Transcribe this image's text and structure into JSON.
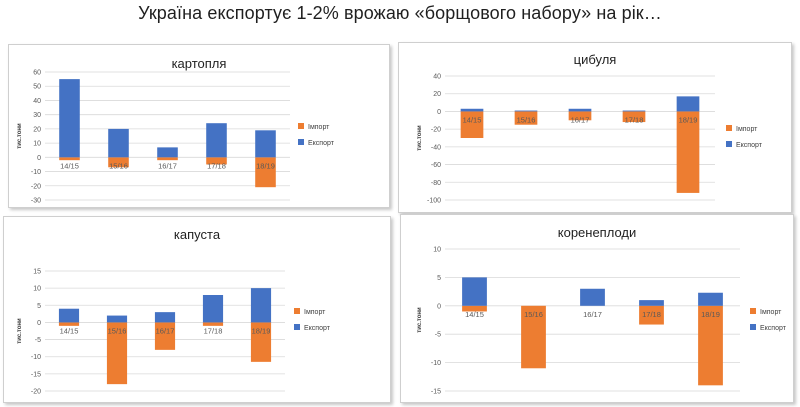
{
  "page": {
    "title": "Україна експортує 1-2%  врожаю «борщового набору» на рік…"
  },
  "colors": {
    "import": "#ED7D31",
    "export": "#4472C4",
    "grid": "#D9D9D9"
  },
  "chart_data": [
    {
      "id": "potato",
      "type": "bar",
      "title": "картопля",
      "ylabel": "тис.тони",
      "categories": [
        "14/15",
        "15/16",
        "16/17",
        "17/18",
        "18/19"
      ],
      "series": [
        {
          "name": "Імпорт",
          "values": [
            -2,
            -7,
            -2,
            -5,
            -21
          ]
        },
        {
          "name": "Експорт",
          "values": [
            55,
            20,
            7,
            24,
            19
          ]
        }
      ],
      "ylim": [
        -30,
        60
      ],
      "yticks": [
        60,
        50,
        40,
        30,
        20,
        10,
        0,
        -10,
        -20,
        -30
      ],
      "grid": true,
      "legend": "right"
    },
    {
      "id": "onion",
      "type": "bar",
      "title": "цибуля",
      "ylabel": "тис.тони",
      "categories": [
        "14/15",
        "15/16",
        "16/17",
        "17/18",
        "18/19"
      ],
      "series": [
        {
          "name": "Імпорт",
          "values": [
            -30,
            -15,
            -10,
            -12,
            -92
          ]
        },
        {
          "name": "Експорт",
          "values": [
            3,
            1,
            3,
            1,
            17
          ]
        }
      ],
      "ylim": [
        -100,
        40
      ],
      "yticks": [
        40,
        20,
        0,
        -20,
        -40,
        -60,
        -80,
        -100
      ],
      "grid": true,
      "legend": "right"
    },
    {
      "id": "cabbage",
      "type": "bar",
      "title": "капуста",
      "ylabel": "тис.тони",
      "categories": [
        "14/15",
        "15/16",
        "16/17",
        "17/18",
        "18/19"
      ],
      "series": [
        {
          "name": "Імпорт",
          "values": [
            -1,
            -18,
            -8,
            -1,
            -11.5
          ]
        },
        {
          "name": "Експорт",
          "values": [
            4,
            2,
            3,
            8,
            10
          ]
        }
      ],
      "ylim": [
        -20,
        15
      ],
      "yticks": [
        15,
        10,
        5,
        0,
        -5,
        -10,
        -15,
        -20
      ],
      "grid": true,
      "legend": "right"
    },
    {
      "id": "root-vegetables",
      "type": "bar",
      "title": "коренеплоди",
      "ylabel": "тис.тони",
      "categories": [
        "14/15",
        "15/16",
        "16/17",
        "17/18",
        "18/19"
      ],
      "series": [
        {
          "name": "Імпорт",
          "values": [
            -1,
            -11,
            0,
            -3.3,
            -14
          ]
        },
        {
          "name": "Експорт",
          "values": [
            5,
            0,
            3,
            1,
            2.3
          ]
        }
      ],
      "ylim": [
        -15,
        10
      ],
      "yticks": [
        10,
        5,
        0,
        -5,
        -10,
        -15
      ],
      "grid": true,
      "legend": "right"
    }
  ]
}
